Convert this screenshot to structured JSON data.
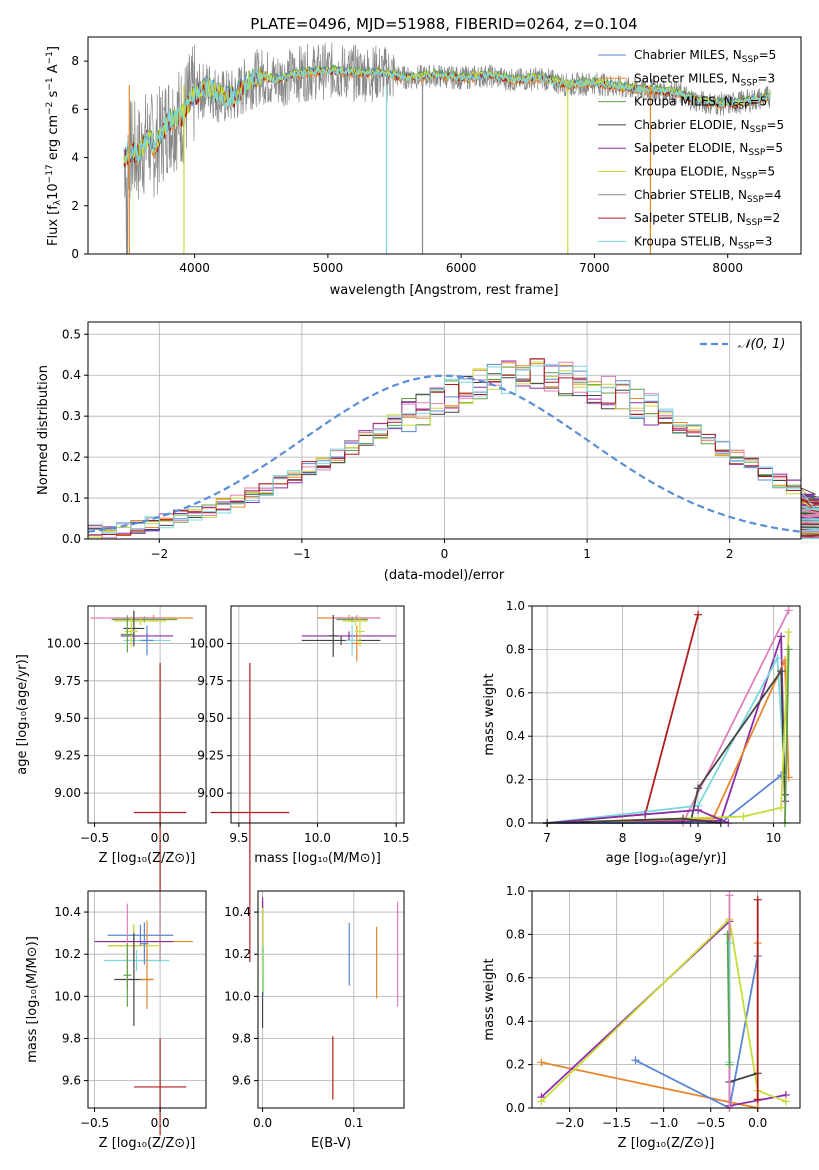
{
  "colors": {
    "chabrier_miles": "#5b86d6",
    "salpeter_miles": "#e8872c",
    "kroupa_miles": "#5fa04a",
    "chabrier_elodie": "#444444",
    "salpeter_elodie": "#8e2ba8",
    "kroupa_elodie": "#c8dc38",
    "chabrier_stelib": "#888888",
    "salpeter_stelib": "#b01c1c",
    "kroupa_stelib": "#7ad8dc",
    "pink": "#e07fb8",
    "gauss": "#5a8fd6"
  },
  "spectrum": {
    "title": "PLATE=0496, MJD=51988, FIBERID=0264, z=0.104",
    "xlabel": "wavelength [Angstrom, rest frame]",
    "ylabel_prefix": "Flux [f",
    "xlim": [
      3200,
      8550
    ],
    "ylim": [
      0,
      9
    ],
    "xticks": [
      "4000",
      "5000",
      "6000",
      "7000",
      "8000"
    ],
    "yticks": [
      "0",
      "2",
      "4",
      "6",
      "8"
    ],
    "legend": [
      {
        "label": "Chabrier MILES, N",
        "n": "5",
        "color_key": "chabrier_miles"
      },
      {
        "label": "Salpeter MILES, N",
        "n": "3",
        "color_key": "salpeter_miles"
      },
      {
        "label": "Kroupa MILES, N",
        "n": "5",
        "color_key": "kroupa_miles"
      },
      {
        "label": "Chabrier ELODIE, N",
        "n": "5",
        "color_key": "chabrier_elodie"
      },
      {
        "label": "Salpeter ELODIE, N",
        "n": "5",
        "color_key": "salpeter_elodie"
      },
      {
        "label": "Kroupa ELODIE, N",
        "n": "5",
        "color_key": "kroupa_elodie"
      },
      {
        "label": "Chabrier STELIB, N",
        "n": "4",
        "color_key": "chabrier_stelib"
      },
      {
        "label": "Salpeter STELIB, N",
        "n": "2",
        "color_key": "salpeter_stelib"
      },
      {
        "label": "Kroupa STELIB, N",
        "n": "3",
        "color_key": "kroupa_stelib"
      }
    ]
  },
  "residual": {
    "xlabel": "(data-model)/error",
    "ylabel": "Normed distribution",
    "legend_label": "𝒩(0, 1)",
    "xticks": [
      "-2",
      "-1",
      "0",
      "1",
      "2"
    ],
    "yticks": [
      "0.0",
      "0.1",
      "0.2",
      "0.3",
      "0.4",
      "0.5"
    ]
  },
  "panel_age_z": {
    "ylabel": "age  [log₁₀(age/yr)]",
    "xlabel": "Z [log₁₀(Z/Z⊙)]",
    "xticks": [
      "-0.5",
      "0.0"
    ],
    "yticks": [
      "9.00",
      "9.25",
      "9.50",
      "9.75",
      "10.00"
    ]
  },
  "panel_age_mass": {
    "xlabel": "mass [log₁₀(M/M⊙)]",
    "xticks": [
      "9.5",
      "10.0",
      "10.5"
    ],
    "yticks": [
      "9.00",
      "9.25",
      "9.50",
      "9.75",
      "10.00"
    ]
  },
  "panel_mw_age": {
    "ylabel": "mass weight",
    "xlabel": "age  [log₁₀(age/yr)]",
    "xticks": [
      "7",
      "8",
      "9",
      "10"
    ],
    "yticks": [
      "0.0",
      "0.2",
      "0.4",
      "0.6",
      "0.8",
      "1.0"
    ]
  },
  "panel_mass_z": {
    "ylabel": "mass [log₁₀(M/M⊙)]",
    "xlabel": "Z [log₁₀(Z/Z⊙)]",
    "xticks": [
      "-0.5",
      "0.0"
    ],
    "yticks": [
      "9.6",
      "9.8",
      "10.0",
      "10.2",
      "10.4"
    ]
  },
  "panel_mass_ebv": {
    "xlabel": "E(B-V)",
    "xticks": [
      "0.0",
      "0.1"
    ],
    "yticks": [
      "9.6",
      "9.8",
      "10.0",
      "10.2",
      "10.4"
    ]
  },
  "panel_mw_z": {
    "ylabel": "mass weight",
    "xlabel": "Z [log₁₀(Z/Z⊙)]",
    "xticks": [
      "-2.0",
      "-1.5",
      "-1.0",
      "-0.5",
      "0.0"
    ],
    "yticks": [
      "0.0",
      "0.2",
      "0.4",
      "0.6",
      "0.8",
      "1.0"
    ]
  },
  "chart_data": [
    {
      "type": "line",
      "title": "PLATE=0496, MJD=51988, FIBERID=0264, z=0.104",
      "xlabel": "wavelength [Angstrom, rest frame]",
      "xlim": [
        3200,
        8550
      ],
      "ylim": [
        0,
        9
      ],
      "spectrum_x": [
        3470,
        3520,
        3580,
        3650,
        3700,
        3800,
        3900,
        4000,
        4100,
        4200,
        4300,
        4400,
        4500,
        4600,
        4800,
        5000,
        5200,
        5400,
        5600,
        5800,
        6000,
        6200,
        6400,
        6600,
        6800,
        7000,
        7200,
        7400,
        7600,
        7800,
        8000,
        8200,
        8300
      ],
      "spectrum_y": [
        4.0,
        4.3,
        4.1,
        4.8,
        4.4,
        5.5,
        5.7,
        6.6,
        6.9,
        6.5,
        6.5,
        7.1,
        7.4,
        7.2,
        7.5,
        7.6,
        7.5,
        7.5,
        7.3,
        7.4,
        7.3,
        7.4,
        7.2,
        7.3,
        7.0,
        7.1,
        6.9,
        6.8,
        6.7,
        6.3,
        6.2,
        6.4,
        6.5
      ],
      "legend_placement": "top-right",
      "grid": false
    },
    {
      "type": "bar",
      "xlabel": "(data-model)/error",
      "ylabel": "Normed distribution",
      "xlim": [
        -2.5,
        2.5
      ],
      "ylim": [
        0,
        0.53
      ],
      "bin_width": 0.1,
      "bins_start": -2.5,
      "base_values": [
        0.02,
        0.021,
        0.025,
        0.031,
        0.036,
        0.043,
        0.052,
        0.06,
        0.07,
        0.08,
        0.093,
        0.106,
        0.12,
        0.135,
        0.152,
        0.17,
        0.187,
        0.206,
        0.225,
        0.245,
        0.265,
        0.285,
        0.305,
        0.32,
        0.335,
        0.35,
        0.362,
        0.375,
        0.385,
        0.392,
        0.397,
        0.4,
        0.398,
        0.39,
        0.383,
        0.372,
        0.36,
        0.345,
        0.33,
        0.315,
        0.298,
        0.278,
        0.26,
        0.24,
        0.22,
        0.2,
        0.18,
        0.16,
        0.142,
        0.125,
        0.108,
        0.092,
        0.078,
        0.066,
        0.055,
        0.046,
        0.038,
        0.031,
        0.026,
        0.022,
        0.02
      ],
      "gauss_legend": "𝒩(0, 1)",
      "grid": true
    },
    {
      "type": "scatter",
      "name": "age vs Z",
      "points": [
        {
          "x": -0.05,
          "y": 10.17,
          "xerr": 0.3,
          "color_key": "salpeter_miles"
        },
        {
          "x": -0.15,
          "y": 10.15,
          "xerr": 0.25,
          "color_key": "kroupa_miles"
        },
        {
          "x": -0.2,
          "y": 10.15,
          "xerr": 0.2,
          "color_key": "kroupa_elodie"
        },
        {
          "x": -0.25,
          "y": 10.17,
          "xerr": 0.28,
          "color_key": "pink"
        },
        {
          "x": -0.08,
          "y": 10.02,
          "xerr": 0.18,
          "color_key": "kroupa_stelib"
        },
        {
          "x": -0.12,
          "y": 10.05,
          "xerr": 0.2,
          "color_key": "salpeter_elodie"
        },
        {
          "x": 0.02,
          "y": 8.87,
          "xerr": 0.2,
          "color_key": "salpeter_stelib"
        }
      ],
      "xlim": [
        -0.55,
        0.35
      ],
      "ylim": [
        8.8,
        10.25
      ]
    }
  ]
}
